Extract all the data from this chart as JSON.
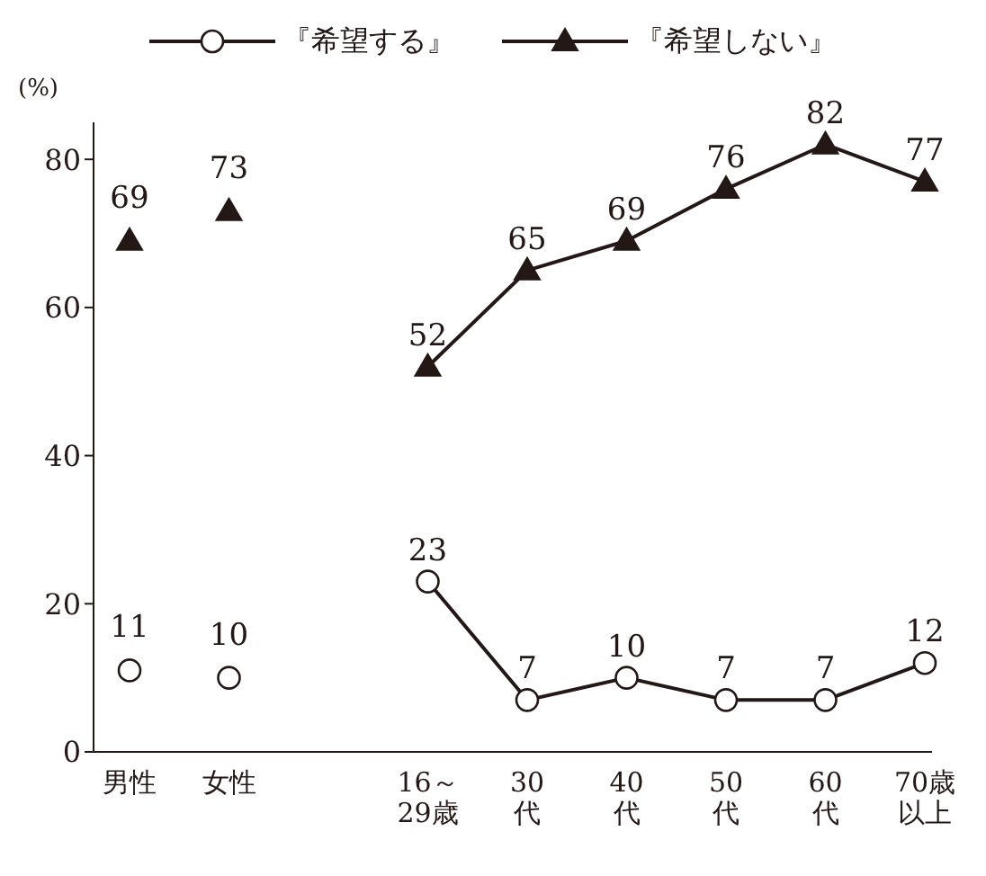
{
  "chart_data": {
    "type": "line",
    "ylabel": "(%)",
    "categories": [
      "男性",
      "女性",
      null,
      "16～29歳",
      "30代",
      "40代",
      "50代",
      "60代",
      "70歳以上"
    ],
    "series": [
      {
        "name": "『希望する』",
        "marker": "circle",
        "color": "#231815",
        "values": [
          null,
          null,
          null,
          23,
          7,
          10,
          7,
          7,
          12
        ]
      },
      {
        "name": "『希望しない』",
        "marker": "triangle",
        "color": "#231815",
        "values": [
          null,
          null,
          null,
          52,
          65,
          69,
          76,
          82,
          77
        ]
      },
      {
        "type": "scatter",
        "marker": "circle",
        "color": "#231815",
        "values": [
          11,
          10,
          null,
          null,
          null,
          null,
          null,
          null,
          null
        ]
      },
      {
        "type": "scatter",
        "marker": "triangle",
        "color": "#231815",
        "values": [
          69,
          73,
          null,
          null,
          null,
          null,
          null,
          null,
          null
        ]
      }
    ],
    "ylim": [
      0,
      85
    ],
    "yticks": [
      0,
      20,
      40,
      60,
      80
    ],
    "data_labels": true,
    "grid": false,
    "legend": "top"
  }
}
